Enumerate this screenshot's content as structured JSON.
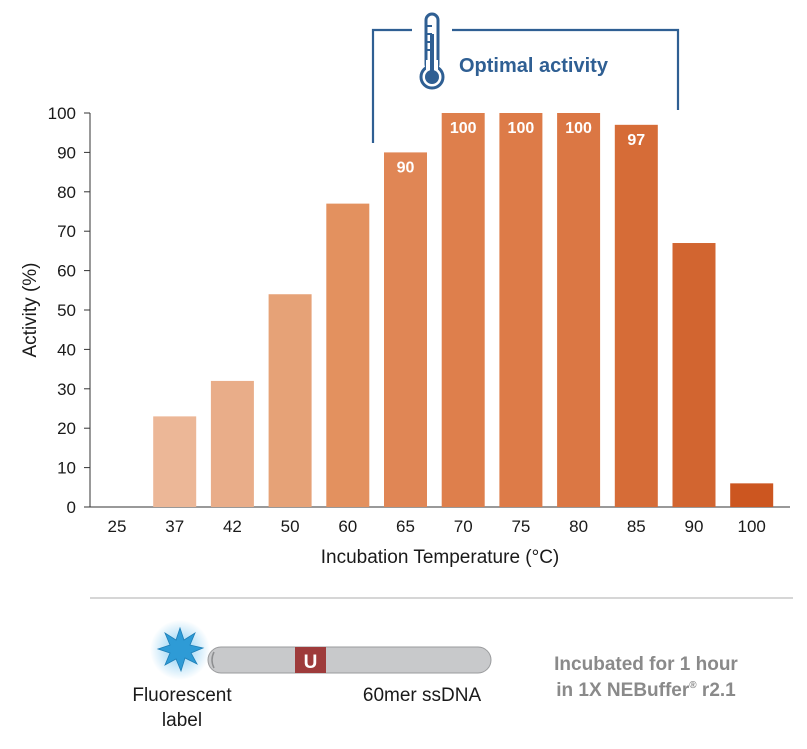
{
  "chart_data": {
    "type": "bar",
    "categories": [
      "25",
      "37",
      "42",
      "50",
      "60",
      "65",
      "70",
      "75",
      "80",
      "85",
      "90",
      "100"
    ],
    "values": [
      0,
      23,
      32,
      54,
      77,
      90,
      100,
      100,
      100,
      97,
      67,
      6
    ],
    "value_labels": [
      "",
      "",
      "",
      "",
      "",
      "90",
      "100",
      "100",
      "100",
      "97",
      "",
      ""
    ],
    "xlabel": "Incubation Temperature (°C)",
    "ylabel": "Activity (%)",
    "ylim": [
      0,
      100
    ],
    "yticks": [
      "0",
      "10",
      "20",
      "30",
      "40",
      "50",
      "60",
      "70",
      "80",
      "90",
      "100"
    ],
    "grid": false,
    "bar_colors": [
      "#f2cdb5",
      "#ecb797",
      "#e9ad89",
      "#e6a277",
      "#e3915f",
      "#e08655",
      "#de7f4c",
      "#dd7b48",
      "#db7744",
      "#d66c37",
      "#d26530",
      "#cc5620"
    ],
    "annotation": {
      "text": "Optimal activity",
      "icon": "thermometer-icon",
      "color": "#2f5f93",
      "from_category": "65",
      "to_category": "85"
    }
  },
  "diagram": {
    "fluorescent_label": "Fluorescent",
    "fluorescent_label_2": "label",
    "strand_label": "60mer ssDNA",
    "uracil_letter": "U",
    "note_line1": "Incubated for 1 hour",
    "note_line2_prefix": "in 1X NEBuffer",
    "note_registered": "®",
    "note_line2_suffix": " r2.1",
    "colors": {
      "strand": "#c8c9cb",
      "uracil": "#9e3b3b",
      "burst": "#2e9bd6",
      "note": "#8a8a8a"
    }
  }
}
